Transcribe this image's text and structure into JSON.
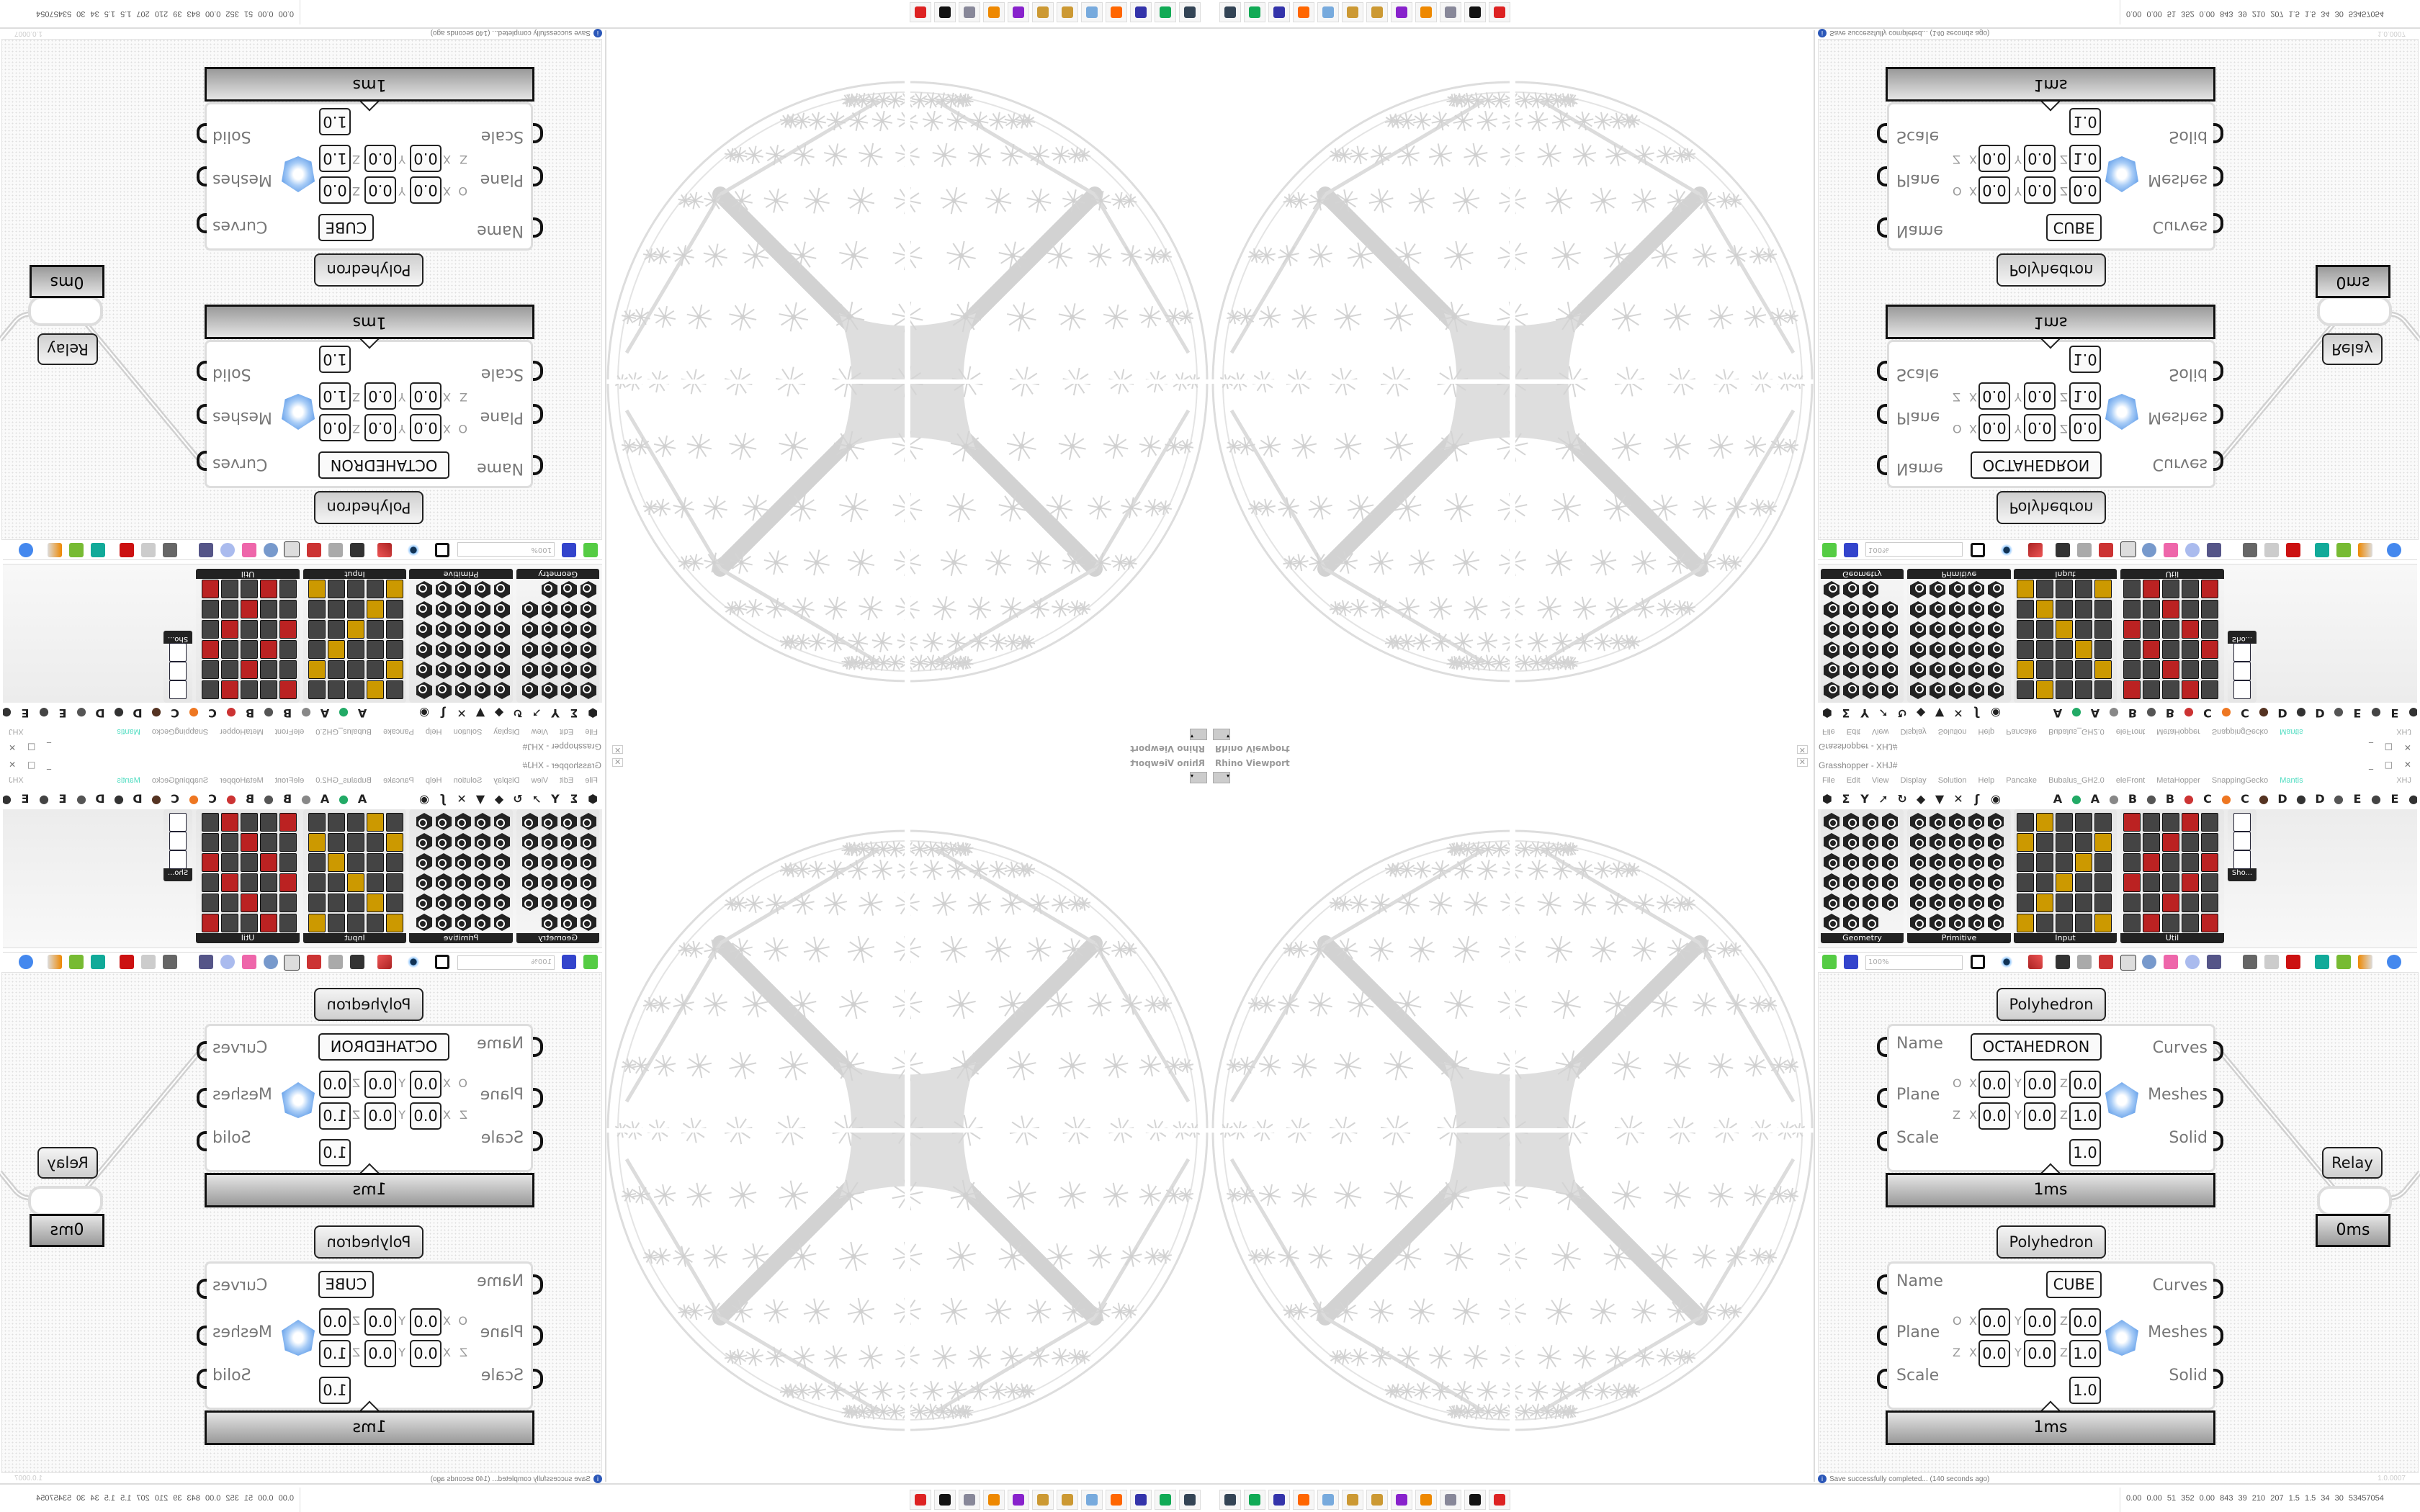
{
  "viewport": {
    "title": "Rhino Viewport",
    "close": "✕",
    "dropdown": "▾"
  },
  "grasshopper": {
    "title": "Grasshopper - XHJ#",
    "window_buttons": "_ □ ✕",
    "menu": [
      "File",
      "Edit",
      "View",
      "Display",
      "Solution",
      "Help",
      "Pancake",
      "Bubalus_GH2.0",
      "eleFront",
      "MetaHopper",
      "SnappingGecko",
      "Mantis"
    ],
    "active_menu": "Mantis",
    "menu_right": "XHJ",
    "tab_letters": [
      "A",
      "A",
      "B",
      "B",
      "C",
      "C",
      "D",
      "D",
      "E",
      "E"
    ],
    "panels": [
      "Geometry",
      "Primitive",
      "Input",
      "Util"
    ],
    "extra_panel": "Sho...",
    "zoom": "100%",
    "status": "Save successfully completed... (140 seconds ago)",
    "version": "1.0.0007"
  },
  "components": [
    {
      "title": "Polyhedron",
      "name_value": "OCTAHEDRON",
      "inputs": [
        "Name",
        "Plane",
        "Scale"
      ],
      "outputs": [
        "Curves",
        "Meshes",
        "Solid"
      ],
      "origin": [
        "0.0",
        "0.0",
        "0.0"
      ],
      "zaxis": [
        "0.0",
        "0.0",
        "1.0"
      ],
      "scale": "1.0",
      "time": "1ms"
    },
    {
      "title": "Polyhedron",
      "name_value": "CUBE",
      "inputs": [
        "Name",
        "Plane",
        "Scale"
      ],
      "outputs": [
        "Curves",
        "Meshes",
        "Solid"
      ],
      "origin": [
        "0.0",
        "0.0",
        "0.0"
      ],
      "zaxis": [
        "0.0",
        "0.0",
        "1.0"
      ],
      "scale": "1.0",
      "time": "1ms"
    }
  ],
  "plane_labels": {
    "o": "O",
    "z": "Z",
    "x": "X",
    "y": "Y",
    "zz": "Z"
  },
  "relay": {
    "title": "Relay",
    "time": "0ms"
  },
  "taskbar": {
    "icons": [
      "remote-desktop-icon",
      "terminal-icon",
      "floppy-64-icon",
      "firefox-icon",
      "calculator-icon",
      "paint-icon",
      "paint-icon-2",
      "game-icon",
      "blender-icon",
      "scroll-icon",
      "rhino-icon",
      "antivirus-icon"
    ],
    "icon_colors": [
      "#345",
      "#1a5",
      "#33a",
      "#f60",
      "#7ad",
      "#c93",
      "#c93",
      "#82c",
      "#e80",
      "#889",
      "#111",
      "#d22"
    ],
    "stats": "0.00 0.00  51   352  0.00  843   39   210  207   1.5   1.5   34    30  53457054"
  },
  "colors": {
    "accent": "#4ddcc0",
    "wire": "#d0d0d0",
    "component_border": "#dddddd"
  }
}
